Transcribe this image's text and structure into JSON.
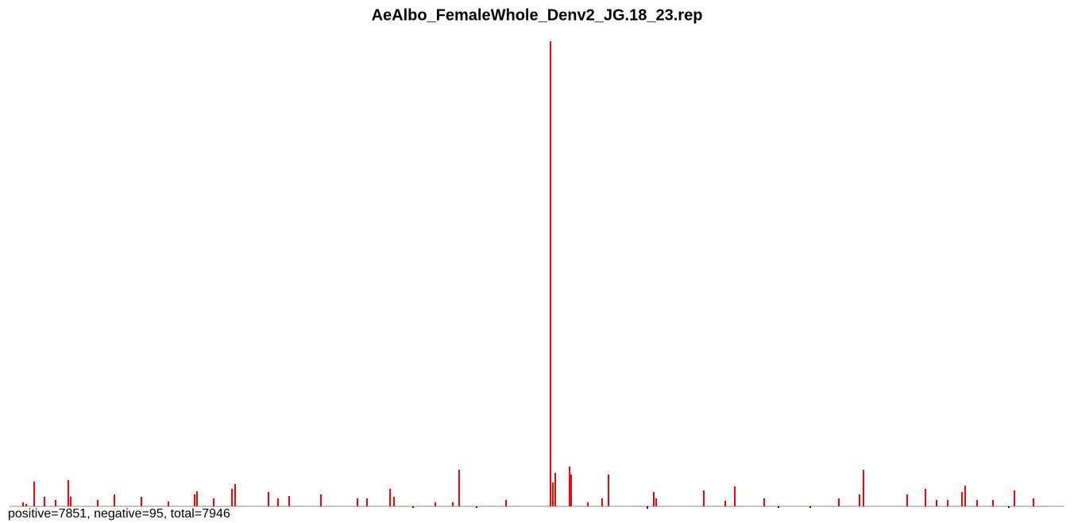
{
  "chart_data": {
    "type": "bar",
    "title": "AeAlbo_FemaleWhole_Denv2_JG.18_23.rep",
    "footer": "positive=7851, negative=95, total=7946",
    "series": [
      {
        "name": "positive",
        "color": "#ff0000",
        "x": [
          29,
          33,
          43,
          56,
          70,
          86,
          89,
          123,
          144,
          178,
          212,
          245,
          248,
          269,
          292,
          296,
          338,
          350,
          364,
          404,
          450,
          462,
          491,
          496,
          548,
          570,
          578,
          637,
          693,
          696,
          699,
          717,
          719,
          740,
          758,
          766,
          823,
          826,
          886,
          913,
          925,
          962,
          1056,
          1082,
          1087,
          1142,
          1165,
          1179,
          1193,
          1211,
          1215,
          1230,
          1250,
          1277,
          1301
        ],
        "values": [
          5,
          3,
          31,
          12,
          8,
          33,
          12,
          8,
          15,
          12,
          6,
          15,
          19,
          10,
          22,
          28,
          18,
          10,
          13,
          15,
          10,
          10,
          22,
          12,
          5,
          5,
          46,
          8,
          585,
          30,
          42,
          50,
          40,
          5,
          10,
          40,
          18,
          10,
          20,
          7,
          25,
          10,
          10,
          15,
          46,
          15,
          22,
          8,
          8,
          18,
          26,
          8,
          8,
          20,
          10
        ]
      },
      {
        "name": "negative",
        "color": "#0000ff",
        "x": [
          520,
          600,
          815,
          980,
          1020,
          1270
        ],
        "values": [
          -2,
          -2,
          -3,
          -2,
          -2,
          -2
        ]
      }
    ]
  }
}
